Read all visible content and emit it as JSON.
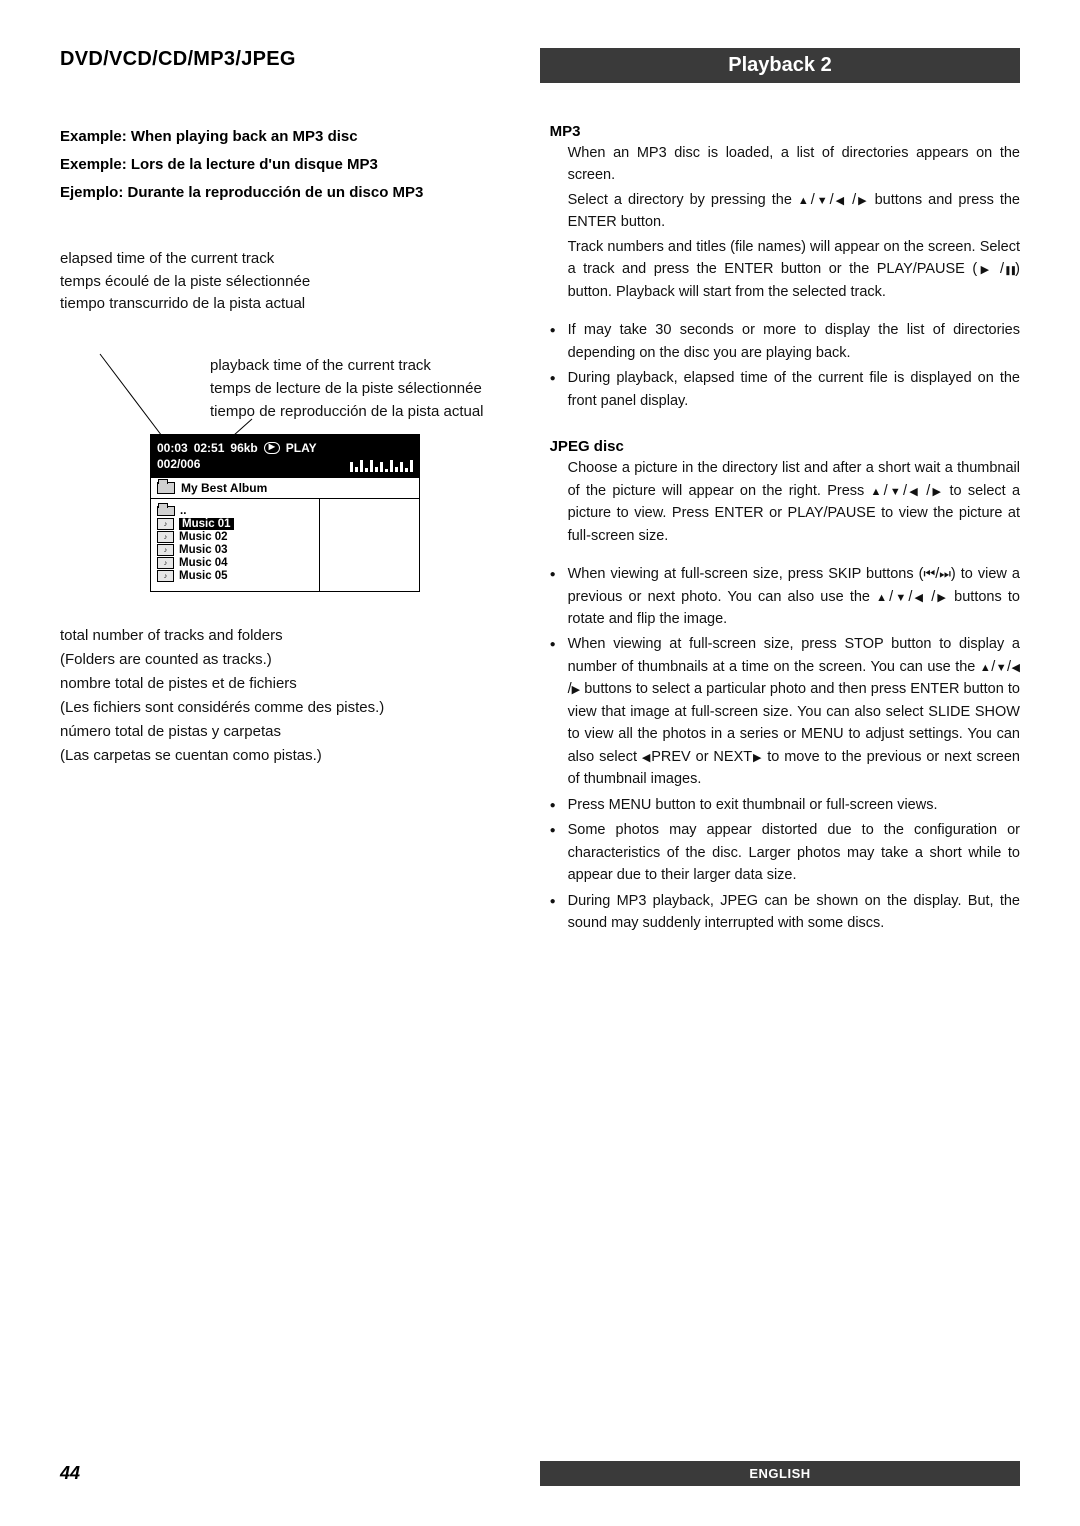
{
  "header": {
    "section_title": "DVD/VCD/CD/MP3/JPEG",
    "playback_title": "Playback 2"
  },
  "left": {
    "example": {
      "en": "Example: When playing back an MP3 disc",
      "fr": "Exemple: Lors de la lecture d'un disque MP3",
      "es": "Ejemplo: Durante la reproducción de un disco MP3"
    },
    "elapsed": {
      "en": "elapsed time of the current track",
      "fr": "temps écoulé de la piste sélectionnée",
      "es": "tiempo transcurrido de la pista actual"
    },
    "playbacktime": {
      "en": "playback time of the current track",
      "fr": "temps de lecture de la piste sélectionnée",
      "es": "tiempo de reproducción de la pista actual"
    },
    "total": {
      "en": "total number of tracks and folders",
      "en2": "(Folders are counted as tracks.)",
      "fr": "nombre total de pistes et de fichiers",
      "fr2": "(Les fichiers sont considérés comme des pistes.)",
      "es": "número total de pistas y carpetas",
      "es2": "(Las carpetas se cuentan como pistas.)"
    },
    "osd": {
      "time_elapsed": "00:03",
      "time_total": "02:51",
      "bitrate": "96kb",
      "play_label": "PLAY",
      "counter": "002/006",
      "album": "My Best Album",
      "tracks": [
        "Music 01",
        "Music 02",
        "Music 03",
        "Music 04",
        "Music 05"
      ],
      "eq_heights": [
        10,
        5,
        12,
        4,
        12,
        5,
        10,
        3,
        12,
        5,
        10,
        4,
        12
      ]
    }
  },
  "right": {
    "mp3_heading": "MP3",
    "mp3_p1": "When an MP3 disc is loaded, a list of directories appears on the screen.",
    "mp3_p2a": "Select a directory by pressing the ",
    "mp3_p2b": " buttons and press the ENTER button.",
    "mp3_p3a": "Track numbers and titles (file names) will appear on the screen. Select a track and press the ENTER button or the PLAY/PAUSE (",
    "mp3_p3b": ") button. Playback will start from the selected track.",
    "mp3_b1": "If may take 30 seconds or more to display the list of directories depending on the disc you are playing back.",
    "mp3_b2": "During playback, elapsed time of the current file is displayed on the front panel display.",
    "jpeg_heading": "JPEG disc",
    "jpeg_p1a": "Choose a picture in the directory list and after a short wait a thumbnail of the picture will appear on the right. Press ",
    "jpeg_p1b": " to select a picture to view. Press ENTER or PLAY/PAUSE to view the picture at full-screen size.",
    "jpeg_b1a": "When viewing at full-screen size, press SKIP buttons (",
    "jpeg_b1b": ") to view a previous or next photo. You can also use the ",
    "jpeg_b1c": " buttons to rotate and flip the image.",
    "jpeg_b2a": "When viewing at full-screen size, press STOP button to display a number of thumbnails at a time on the screen. You can use the ",
    "jpeg_b2b": " buttons to select a particular photo and then press ENTER button to view that image at full-screen size. You can also select SLIDE SHOW to view all the photos in a series or MENU to adjust settings. You can also select ",
    "jpeg_b2c": "PREV or NEXT",
    "jpeg_b2d": " to move to the previous or next screen of thumbnail images.",
    "jpeg_b3": "Press MENU button to exit thumbnail or full-screen views.",
    "jpeg_b4": "Some photos may appear distorted due to the configuration or characteristics of the disc. Larger photos may take a short while to appear due to their larger data size.",
    "jpeg_b5": "During MP3 playback, JPEG can be shown on the display. But, the sound may suddenly interrupted with some discs."
  },
  "footer": {
    "page": "44",
    "lang": "ENGLISH"
  }
}
